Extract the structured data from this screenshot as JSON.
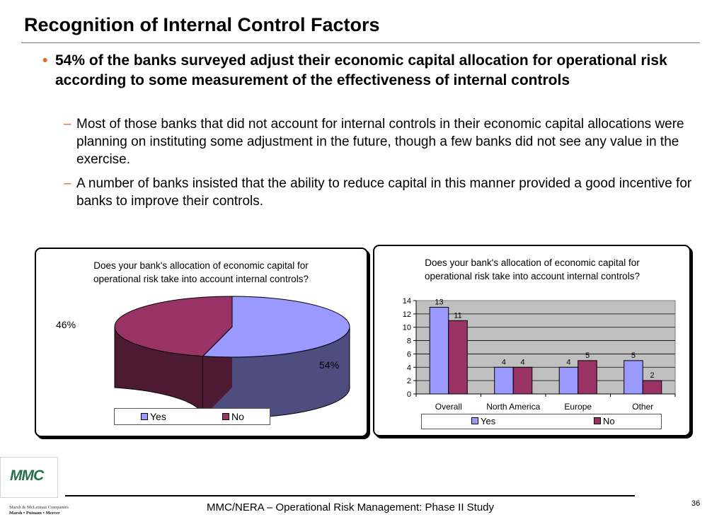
{
  "title": "Recognition of Internal Control Factors",
  "bullet": {
    "symbol": "•",
    "text": "54% of the banks surveyed adjust their economic capital allocation for operational risk according to some measurement of the effectiveness of internal controls"
  },
  "subbullets": [
    {
      "symbol": "–",
      "text": "Most of those banks that did not account for internal controls in their economic capital allocations were planning on instituting some adjustment in the future, though a few banks did not see any value in the exercise."
    },
    {
      "symbol": "–",
      "text": "A number of banks insisted that the ability to reduce capital in this manner provided a good incentive for banks to improve their controls."
    }
  ],
  "colors": {
    "yes": "#9999ff",
    "no": "#993366",
    "plot_bg": "#c0c0c0",
    "accent": "#e06c2a",
    "logo": "#23704a"
  },
  "chart_data": [
    {
      "type": "pie",
      "title": "Does your bank's allocation of economic capital for operational risk take into account internal controls?",
      "categories": [
        "Yes",
        "No"
      ],
      "values": [
        54,
        46
      ],
      "labels": [
        "54%",
        "46%"
      ],
      "legend": "bottom",
      "three_d": true
    },
    {
      "type": "bar",
      "title": "Does your bank's allocation of economic capital for operational risk take into account internal controls?",
      "categories": [
        "Overall",
        "North America",
        "Europe",
        "Other"
      ],
      "series": [
        {
          "name": "Yes",
          "values": [
            13,
            4,
            4,
            5
          ]
        },
        {
          "name": "No",
          "values": [
            11,
            4,
            5,
            2
          ]
        }
      ],
      "ylim": [
        0,
        14
      ],
      "yticks": [
        "0",
        "2",
        "4",
        "6",
        "8",
        "10",
        "12",
        "14"
      ],
      "grid": true,
      "legend": "bottom"
    }
  ],
  "footer": {
    "text": "MMC/NERA – Operational Risk Management: Phase II Study",
    "page": "36"
  },
  "logo": {
    "text": "MMC",
    "line1": "Marsh & McLennan Companies",
    "line2": "Marsh • Putnam • Mercer"
  }
}
